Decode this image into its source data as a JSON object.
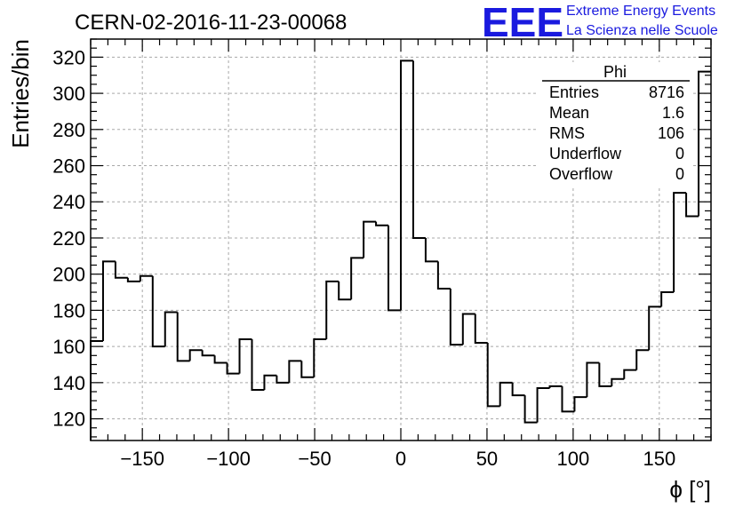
{
  "chart_data": {
    "type": "histogram",
    "title": "CERN-02-2016-11-23-00068",
    "xlabel": "ϕ [°]",
    "ylabel": "Entries/bin",
    "xlim": [
      -180,
      180
    ],
    "ylim": [
      108,
      330
    ],
    "grid": true,
    "bin_width": 7.2,
    "bin_edges_start": -180,
    "xticks": [
      -150,
      -100,
      -50,
      0,
      50,
      100,
      150
    ],
    "xtick_labels": [
      "−150",
      "−100",
      "−50",
      "0",
      "50",
      "100",
      "150"
    ],
    "yticks": [
      120,
      140,
      160,
      180,
      200,
      220,
      240,
      260,
      280,
      300,
      320
    ],
    "ytick_labels": [
      "120",
      "140",
      "160",
      "180",
      "200",
      "220",
      "240",
      "260",
      "280",
      "300",
      "320"
    ],
    "values": [
      163,
      207,
      198,
      196,
      199,
      160,
      179,
      152,
      158,
      155,
      151,
      145,
      164,
      136,
      144,
      140,
      152,
      143,
      164,
      196,
      186,
      209,
      229,
      227,
      180,
      318,
      220,
      207,
      192,
      161,
      178,
      162,
      127,
      140,
      133,
      118,
      137,
      138,
      124,
      132,
      151,
      138,
      142,
      147,
      158,
      182,
      190,
      245,
      232,
      312
    ],
    "stats": {
      "title": "Phi",
      "rows": [
        {
          "label": "Entries",
          "value": "8716"
        },
        {
          "label": "Mean",
          "value": "1.6"
        },
        {
          "label": "RMS",
          "value": "106"
        },
        {
          "label": "Underflow",
          "value": "0"
        },
        {
          "label": "Overflow",
          "value": "0"
        }
      ]
    }
  },
  "logo": {
    "text": "EEE",
    "line1": "Extreme Energy Events",
    "line2": "La Scienza nelle Scuole",
    "color": "#1a1adf"
  }
}
